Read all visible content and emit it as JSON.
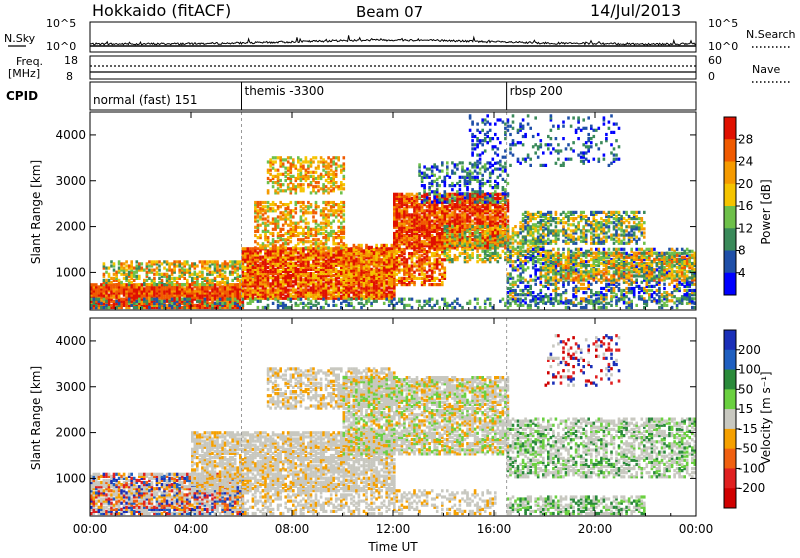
{
  "header": {
    "station": "Hokkaido (fitACF)",
    "beam": "Beam 07",
    "date": "14/Jul/2013"
  },
  "noise_panel": {
    "left_label": "N.Sky",
    "right_label": "N.Search",
    "left_ticks": [
      "10^5",
      "10^0"
    ],
    "right_ticks": [
      "10^5",
      "10^0"
    ]
  },
  "freq_panel": {
    "left_label_1": "Freq.",
    "left_label_2": "[MHz]",
    "right_label": "Nave",
    "left_ticks": [
      "18",
      "8"
    ],
    "right_ticks": [
      "60",
      "0"
    ]
  },
  "cpid": {
    "label": "CPID",
    "segments": [
      {
        "name": "normal (fast) 151",
        "start_hour": 0
      },
      {
        "name": "themis -3300",
        "start_hour": 6.0
      },
      {
        "name": "rbsp 200",
        "start_hour": 16.5
      }
    ]
  },
  "chart_data": [
    {
      "type": "heatmap",
      "title": "",
      "ylabel": "Slant Range [km]",
      "xlabel": "Time UT",
      "x_range_hours": [
        0,
        24
      ],
      "ylim": [
        180,
        4500
      ],
      "y_ticks": [
        1000,
        2000,
        3000,
        4000
      ],
      "colorbar": {
        "label": "Power [dB]",
        "ticks": [
          "4",
          "8",
          "12",
          "16",
          "20",
          "24",
          "28"
        ],
        "colors": [
          "#0000ff",
          "#1f4fa8",
          "#3a8a5a",
          "#6ec04a",
          "#f5c400",
          "#f59a00",
          "#f05a00",
          "#e01000"
        ]
      }
    },
    {
      "type": "heatmap",
      "title": "",
      "ylabel": "Slant Range [km]",
      "xlabel": "Time UT",
      "x_range_hours": [
        0,
        24
      ],
      "ylim": [
        180,
        4500
      ],
      "y_ticks": [
        1000,
        2000,
        3000,
        4000
      ],
      "colorbar": {
        "label": "Velocity [m s⁻¹]",
        "ticks": [
          "200",
          "100",
          "50",
          "15",
          "-15",
          "-50",
          "-100",
          "-200"
        ],
        "colors": [
          "#1a2fb8",
          "#1f5fc0",
          "#2a8a3a",
          "#6ad040",
          "#c8c8c0",
          "#f5a000",
          "#f06010",
          "#e02020",
          "#d00000"
        ]
      }
    }
  ],
  "x_axis": {
    "ticks": [
      "00:00",
      "04:00",
      "08:00",
      "12:00",
      "16:00",
      "20:00",
      "00:00"
    ],
    "label": "Time UT"
  }
}
